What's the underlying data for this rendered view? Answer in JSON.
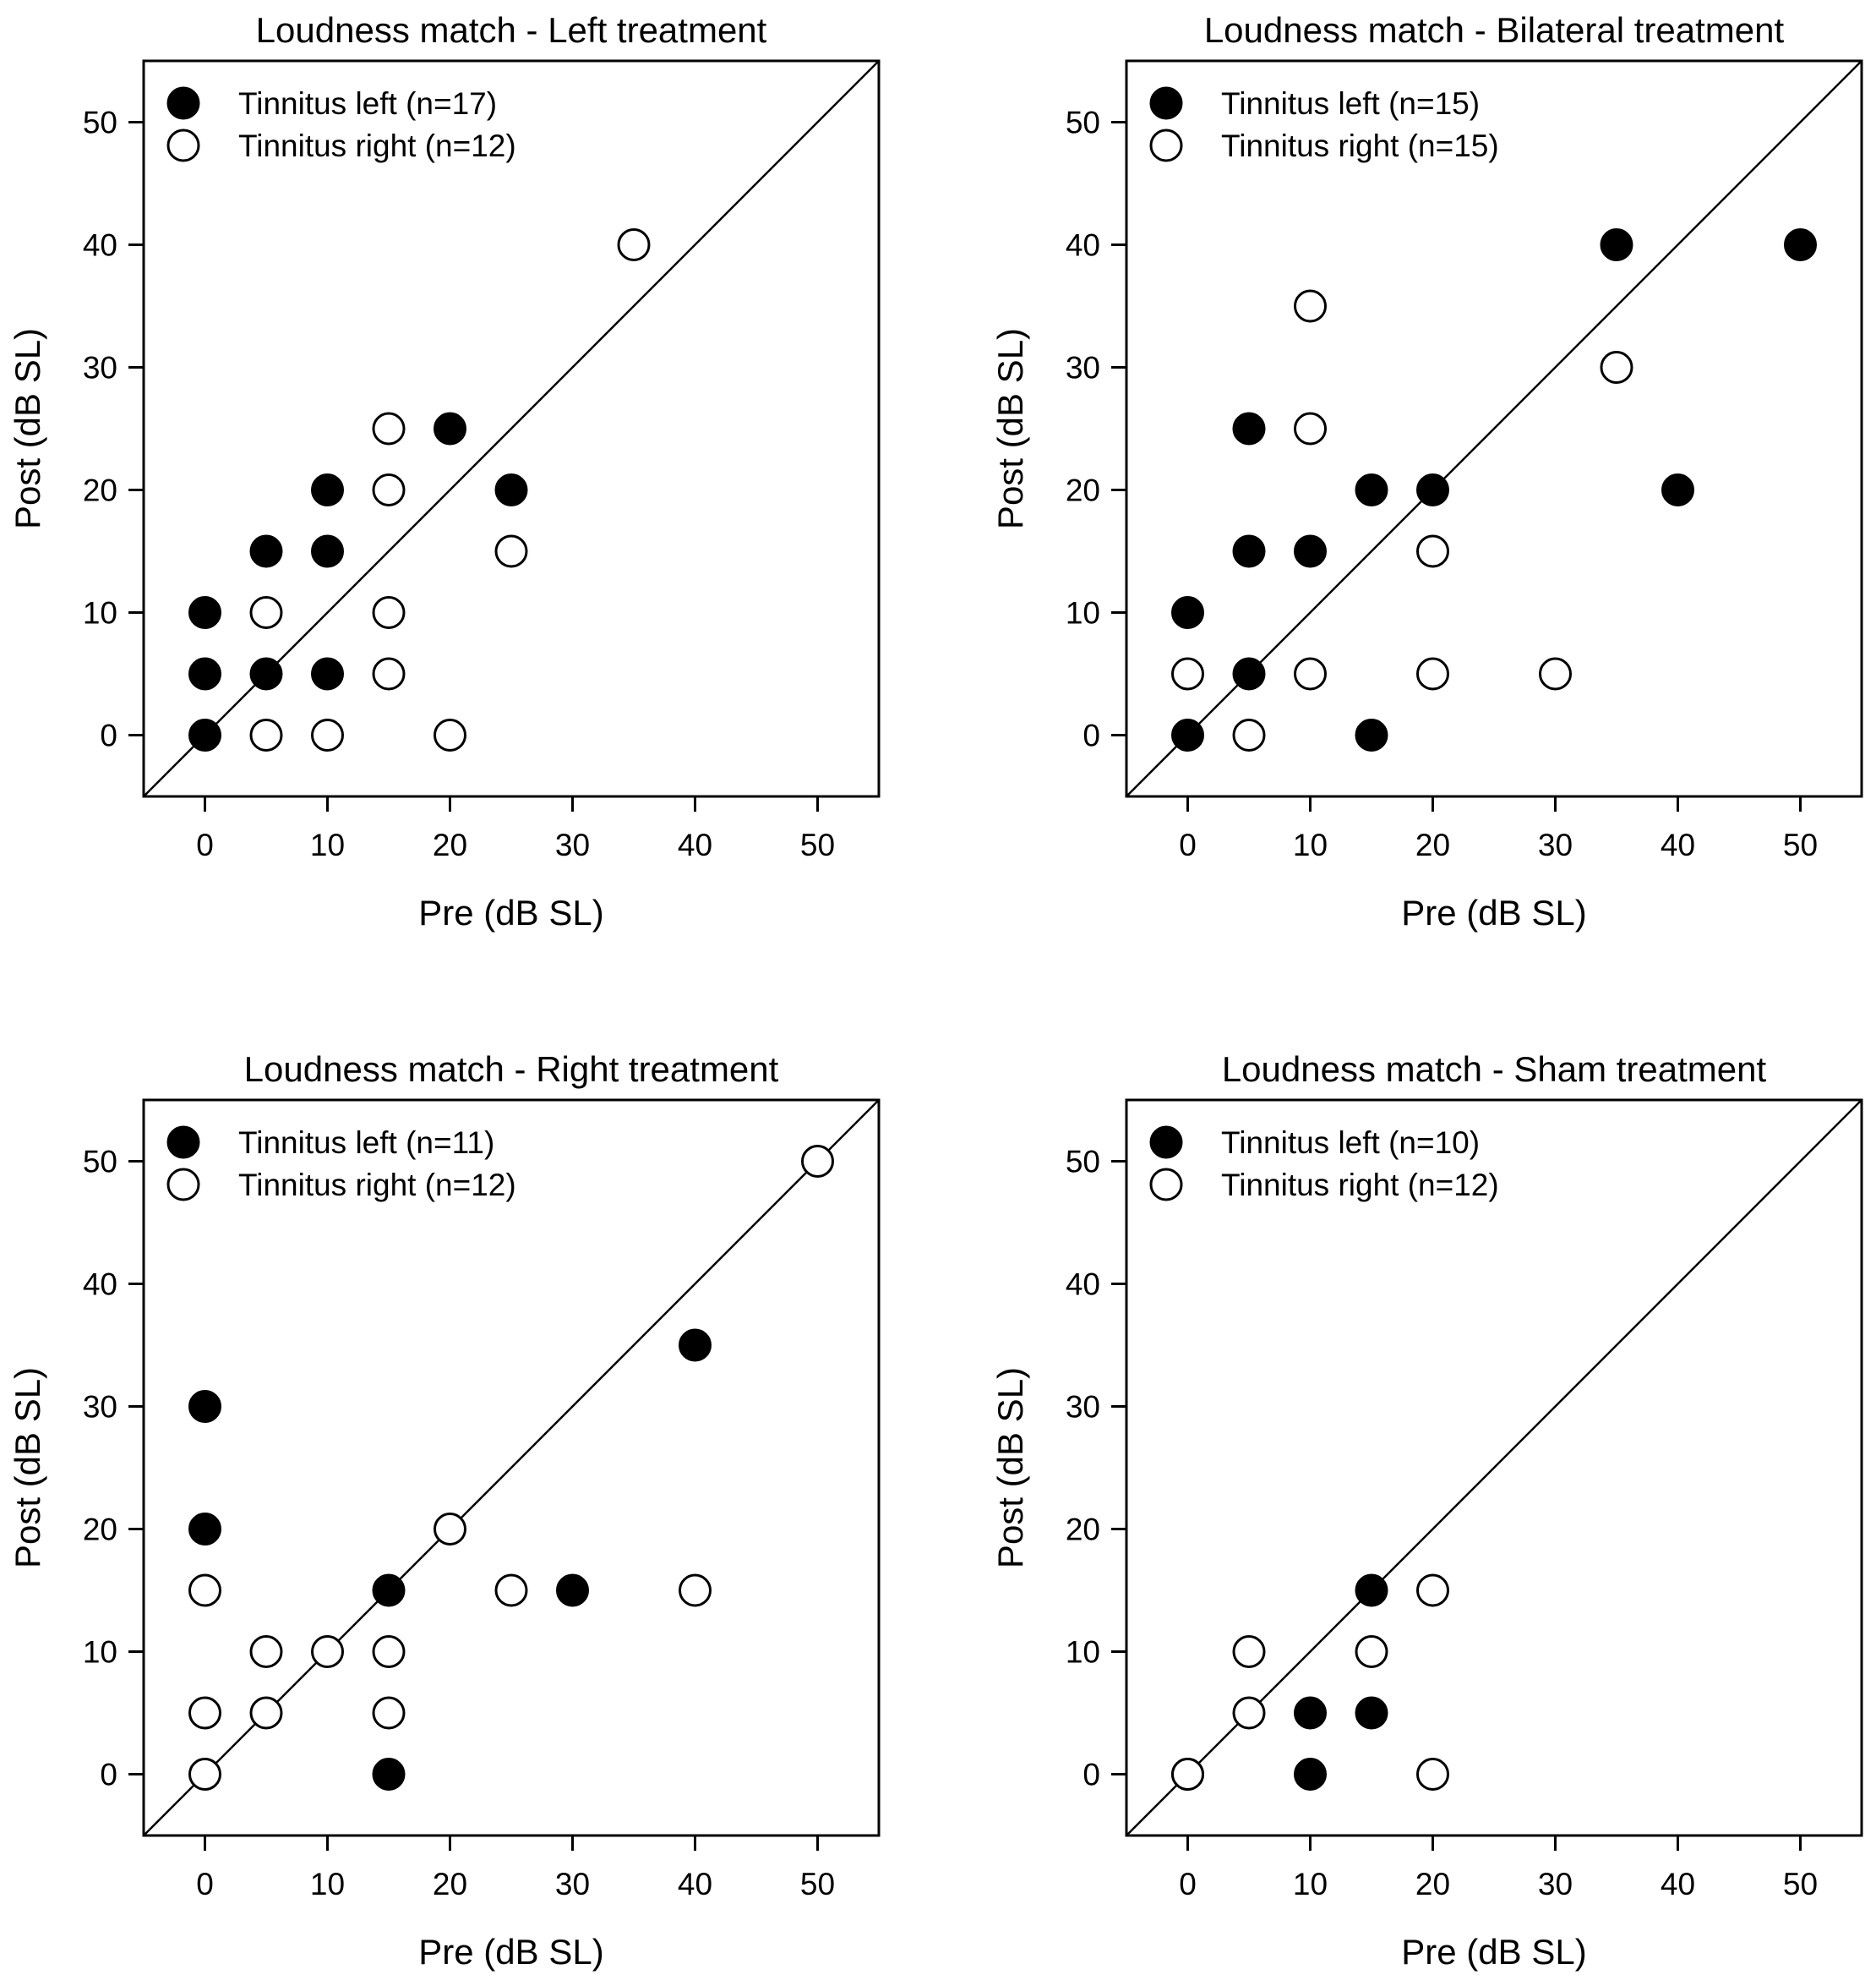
{
  "chart_data": [
    {
      "type": "scatter",
      "title": "Loudness match - Left treatment",
      "xlabel": "Pre (dB SL)",
      "ylabel": "Post (dB SL)",
      "xlim": [
        -5,
        55
      ],
      "ylim": [
        -5,
        55
      ],
      "xticks": [
        0,
        10,
        20,
        30,
        40,
        50
      ],
      "yticks": [
        0,
        10,
        20,
        30,
        40,
        50
      ],
      "identity_line": true,
      "legend_position": "top-left",
      "series": [
        {
          "name": "Tinnitus left (n=17)",
          "marker": "filled-circle",
          "points": [
            [
              0,
              0
            ],
            [
              0,
              5
            ],
            [
              0,
              10
            ],
            [
              5,
              5
            ],
            [
              5,
              15
            ],
            [
              10,
              5
            ],
            [
              10,
              15
            ],
            [
              10,
              20
            ],
            [
              20,
              25
            ],
            [
              25,
              20
            ]
          ]
        },
        {
          "name": "Tinnitus right (n=12)",
          "marker": "open-circle",
          "points": [
            [
              5,
              0
            ],
            [
              5,
              10
            ],
            [
              10,
              0
            ],
            [
              15,
              5
            ],
            [
              15,
              10
            ],
            [
              15,
              20
            ],
            [
              15,
              25
            ],
            [
              20,
              0
            ],
            [
              25,
              15
            ],
            [
              35,
              40
            ]
          ]
        }
      ]
    },
    {
      "type": "scatter",
      "title": "Loudness match - Bilateral treatment",
      "xlabel": "Pre (dB SL)",
      "ylabel": "Post (dB SL)",
      "xlim": [
        -5,
        55
      ],
      "ylim": [
        -5,
        55
      ],
      "xticks": [
        0,
        10,
        20,
        30,
        40,
        50
      ],
      "yticks": [
        0,
        10,
        20,
        30,
        40,
        50
      ],
      "identity_line": true,
      "legend_position": "top-left",
      "series": [
        {
          "name": "Tinnitus left (n=15)",
          "marker": "filled-circle",
          "points": [
            [
              0,
              0
            ],
            [
              0,
              10
            ],
            [
              5,
              5
            ],
            [
              5,
              15
            ],
            [
              5,
              25
            ],
            [
              10,
              15
            ],
            [
              15,
              0
            ],
            [
              15,
              20
            ],
            [
              20,
              20
            ],
            [
              35,
              40
            ],
            [
              40,
              20
            ],
            [
              50,
              40
            ]
          ]
        },
        {
          "name": "Tinnitus right (n=15)",
          "marker": "open-circle",
          "points": [
            [
              0,
              5
            ],
            [
              5,
              0
            ],
            [
              10,
              5
            ],
            [
              10,
              25
            ],
            [
              10,
              35
            ],
            [
              20,
              5
            ],
            [
              20,
              15
            ],
            [
              30,
              5
            ],
            [
              35,
              30
            ]
          ]
        }
      ]
    },
    {
      "type": "scatter",
      "title": "Loudness match - Right treatment",
      "xlabel": "Pre (dB SL)",
      "ylabel": "Post (dB SL)",
      "xlim": [
        -5,
        55
      ],
      "ylim": [
        -5,
        55
      ],
      "xticks": [
        0,
        10,
        20,
        30,
        40,
        50
      ],
      "yticks": [
        0,
        10,
        20,
        30,
        40,
        50
      ],
      "identity_line": true,
      "legend_position": "top-left",
      "series": [
        {
          "name": "Tinnitus left (n=11)",
          "marker": "filled-circle",
          "points": [
            [
              0,
              20
            ],
            [
              0,
              30
            ],
            [
              15,
              0
            ],
            [
              15,
              15
            ],
            [
              30,
              15
            ],
            [
              40,
              35
            ]
          ]
        },
        {
          "name": "Tinnitus right (n=12)",
          "marker": "open-circle",
          "points": [
            [
              0,
              0
            ],
            [
              0,
              5
            ],
            [
              0,
              15
            ],
            [
              5,
              5
            ],
            [
              5,
              10
            ],
            [
              10,
              10
            ],
            [
              15,
              5
            ],
            [
              15,
              10
            ],
            [
              20,
              20
            ],
            [
              25,
              15
            ],
            [
              40,
              15
            ],
            [
              50,
              50
            ]
          ]
        }
      ]
    },
    {
      "type": "scatter",
      "title": "Loudness match - Sham treatment",
      "xlabel": "Pre (dB SL)",
      "ylabel": "Post (dB SL)",
      "xlim": [
        -5,
        55
      ],
      "ylim": [
        -5,
        55
      ],
      "xticks": [
        0,
        10,
        20,
        30,
        40,
        50
      ],
      "yticks": [
        0,
        10,
        20,
        30,
        40,
        50
      ],
      "identity_line": true,
      "legend_position": "top-left",
      "series": [
        {
          "name": "Tinnitus left (n=10)",
          "marker": "filled-circle",
          "points": [
            [
              0,
              0
            ],
            [
              10,
              0
            ],
            [
              10,
              5
            ],
            [
              15,
              5
            ],
            [
              15,
              15
            ]
          ]
        },
        {
          "name": "Tinnitus right (n=12)",
          "marker": "open-circle",
          "points": [
            [
              0,
              0
            ],
            [
              5,
              5
            ],
            [
              5,
              10
            ],
            [
              15,
              10
            ],
            [
              20,
              0
            ],
            [
              20,
              15
            ]
          ]
        }
      ]
    }
  ]
}
